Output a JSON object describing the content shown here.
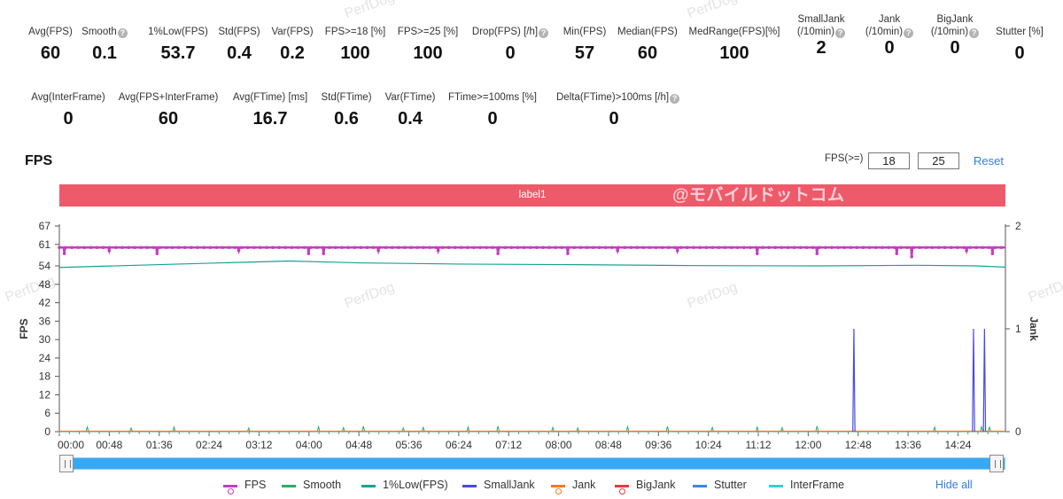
{
  "stats_row1": [
    {
      "label": "Avg(FPS)",
      "value": "60",
      "help": false
    },
    {
      "label": "Smooth",
      "value": "0.1",
      "help": true
    },
    {
      "label": "1%Low(FPS)",
      "value": "53.7",
      "help": false
    },
    {
      "label": "Std(FPS)",
      "value": "0.4",
      "help": false
    },
    {
      "label": "Var(FPS)",
      "value": "0.2",
      "help": false
    },
    {
      "label": "FPS>=18 [%]",
      "value": "100",
      "help": false
    },
    {
      "label": "FPS>=25 [%]",
      "value": "100",
      "help": false
    },
    {
      "label": "Drop(FPS) [/h]",
      "value": "0",
      "help": true
    },
    {
      "label": "Min(FPS)",
      "value": "57",
      "help": false
    },
    {
      "label": "Median(FPS)",
      "value": "60",
      "help": false
    },
    {
      "label": "MedRange(FPS)[%]",
      "value": "100",
      "help": false
    },
    {
      "label": "SmallJank",
      "label2": "(/10min)",
      "value": "2",
      "help": true
    },
    {
      "label": "Jank",
      "label2": "(/10min)",
      "value": "0",
      "help": true
    },
    {
      "label": "BigJank",
      "label2": "(/10min)",
      "value": "0",
      "help": true
    },
    {
      "label": "Stutter [%]",
      "value": "0",
      "help": false
    }
  ],
  "stats_row2": [
    {
      "label": "Avg(InterFrame)",
      "value": "0",
      "help": false
    },
    {
      "label": "Avg(FPS+InterFrame)",
      "value": "60",
      "help": false
    },
    {
      "label": "Avg(FTime) [ms]",
      "value": "16.7",
      "help": false
    },
    {
      "label": "Std(FTime)",
      "value": "0.6",
      "help": false
    },
    {
      "label": "Var(FTime)",
      "value": "0.4",
      "help": false
    },
    {
      "label": "FTime>=100ms [%]",
      "value": "0",
      "help": false
    },
    {
      "label": "Delta(FTime)>100ms [/h]",
      "value": "0",
      "help": true
    }
  ],
  "section_title": "FPS",
  "threshold": {
    "label": "FPS(>=)",
    "value1": "18",
    "value2": "25",
    "reset_label": "Reset"
  },
  "label_bar": {
    "text": "label1",
    "watermark": "@モバイルドットコム"
  },
  "watermark_text": "PerfDog",
  "help_glyph": "?",
  "legend": [
    {
      "name": "FPS",
      "color": "#c23fbf",
      "style": "line-dot"
    },
    {
      "name": "Smooth",
      "color": "#27ae60",
      "style": "line"
    },
    {
      "name": "1%Low(FPS)",
      "color": "#16a394",
      "style": "line"
    },
    {
      "name": "SmallJank",
      "color": "#4a49e0",
      "style": "line"
    },
    {
      "name": "Jank",
      "color": "#f37a1f",
      "style": "line-dot"
    },
    {
      "name": "BigJank",
      "color": "#e83a3a",
      "style": "line-dot"
    },
    {
      "name": "Stutter",
      "color": "#3a86e8",
      "style": "line"
    },
    {
      "name": "InterFrame",
      "color": "#2fd4d4",
      "style": "line"
    }
  ],
  "hide_all_label": "Hide all",
  "chart_data": {
    "type": "line",
    "ylabel": "FPS",
    "y2label": "Jank",
    "ylim": [
      0,
      67
    ],
    "y2lim": [
      0,
      2
    ],
    "yticks": [
      0,
      6,
      12,
      18,
      24,
      30,
      36,
      42,
      48,
      54,
      61,
      67
    ],
    "y2ticks": [
      0,
      1,
      2
    ],
    "x_range_seconds": [
      0,
      949
    ],
    "xticks": [
      "00:00",
      "00:48",
      "01:36",
      "02:24",
      "03:12",
      "04:00",
      "04:48",
      "05:36",
      "06:24",
      "07:12",
      "08:00",
      "08:48",
      "09:36",
      "10:24",
      "11:12",
      "12:00",
      "12:48",
      "13:36",
      "14:24"
    ],
    "series": [
      {
        "name": "FPS",
        "axis": "left",
        "baseline": 60,
        "dips": [
          [
            5,
            58
          ],
          [
            50,
            59
          ],
          [
            98,
            58
          ],
          [
            180,
            59
          ],
          [
            250,
            58
          ],
          [
            265,
            58
          ],
          [
            320,
            59
          ],
          [
            380,
            59
          ],
          [
            440,
            58
          ],
          [
            510,
            58
          ],
          [
            560,
            59
          ],
          [
            620,
            59
          ],
          [
            700,
            58
          ],
          [
            760,
            58
          ],
          [
            840,
            58
          ],
          [
            855,
            57
          ],
          [
            910,
            59
          ],
          [
            936,
            58
          ]
        ]
      },
      {
        "name": "1%Low(FPS)",
        "axis": "left",
        "points": [
          [
            0,
            53.5
          ],
          [
            120,
            54.6
          ],
          [
            230,
            55.6
          ],
          [
            300,
            55
          ],
          [
            400,
            54.6
          ],
          [
            520,
            54.4
          ],
          [
            640,
            54.1
          ],
          [
            760,
            54
          ],
          [
            860,
            54.2
          ],
          [
            920,
            54
          ],
          [
            949,
            53.6
          ]
        ]
      },
      {
        "name": "Smooth",
        "axis": "left",
        "baseline": 0,
        "spikes": [
          [
            28,
            1.5
          ],
          [
            72,
            1.2
          ],
          [
            115,
            1.5
          ],
          [
            190,
            1.2
          ],
          [
            260,
            1.6
          ],
          [
            285,
            1.3
          ],
          [
            305,
            1.8
          ],
          [
            345,
            1.2
          ],
          [
            365,
            1.4
          ],
          [
            410,
            1.5
          ],
          [
            440,
            1.8
          ],
          [
            495,
            1.4
          ],
          [
            520,
            1.2
          ],
          [
            570,
            1.6
          ],
          [
            610,
            1.7
          ],
          [
            655,
            1.4
          ],
          [
            700,
            1.5
          ],
          [
            725,
            1.3
          ],
          [
            760,
            1.8
          ],
          [
            878,
            1.5
          ],
          [
            925,
            1.6
          ],
          [
            933,
            1.5
          ]
        ]
      },
      {
        "name": "SmallJank",
        "axis": "right",
        "baseline": 0,
        "spikes": [
          [
            797,
            1
          ],
          [
            917,
            1
          ],
          [
            928,
            1
          ]
        ]
      },
      {
        "name": "Jank",
        "axis": "right",
        "baseline": 0,
        "spikes": []
      },
      {
        "name": "BigJank",
        "axis": "right",
        "baseline": 0,
        "spikes": []
      },
      {
        "name": "Stutter",
        "axis": "right",
        "baseline": 0,
        "spikes": []
      },
      {
        "name": "InterFrame",
        "axis": "left",
        "baseline": 0,
        "spikes": []
      }
    ]
  }
}
